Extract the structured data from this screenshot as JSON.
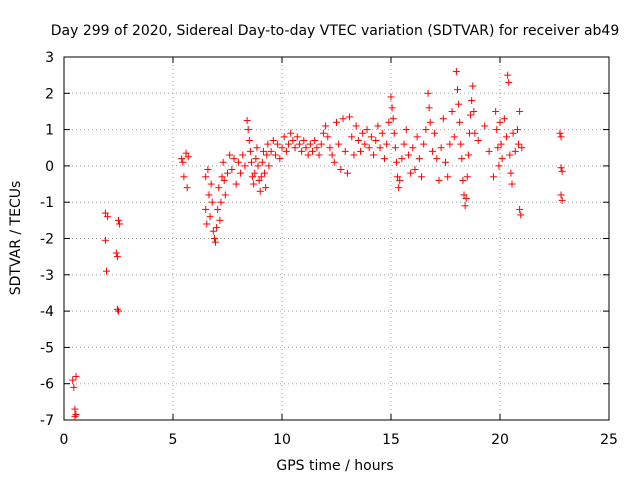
{
  "chart_data": {
    "type": "scatter",
    "title": "Day 299 of 2020, Sidereal Day-to-day VTEC variation (SDTVAR) for receiver ab49",
    "xlabel": "GPS time / hours",
    "ylabel": "SDTVAR / TECUs",
    "xlim": [
      0,
      25
    ],
    "ylim": [
      -7,
      3
    ],
    "x_ticks": [
      "0",
      "5",
      "10",
      "15",
      "20",
      "25"
    ],
    "y_ticks": [
      "-7",
      "-6",
      "-5",
      "-4",
      "-3",
      "-2",
      "-1",
      "0",
      "1",
      "2",
      "3"
    ],
    "grid": true,
    "marker": "+",
    "color": "#ff0000",
    "series": [
      {
        "name": "SDTVAR",
        "points": [
          [
            0.4,
            -5.9
          ],
          [
            0.45,
            -6.1
          ],
          [
            0.5,
            -6.7
          ],
          [
            0.5,
            -6.9
          ],
          [
            0.55,
            -5.8
          ],
          [
            0.55,
            -6.85
          ],
          [
            1.9,
            -1.3
          ],
          [
            1.9,
            -2.05
          ],
          [
            1.95,
            -2.9
          ],
          [
            2.0,
            -1.4
          ],
          [
            2.4,
            -2.4
          ],
          [
            2.45,
            -2.5
          ],
          [
            2.45,
            -3.95
          ],
          [
            2.5,
            -4.0
          ],
          [
            2.5,
            -1.5
          ],
          [
            2.55,
            -1.6
          ],
          [
            5.4,
            0.2
          ],
          [
            5.45,
            0.1
          ],
          [
            5.5,
            -0.3
          ],
          [
            5.6,
            0.35
          ],
          [
            5.65,
            -0.6
          ],
          [
            5.7,
            0.25
          ],
          [
            6.5,
            -0.3
          ],
          [
            6.5,
            -1.2
          ],
          [
            6.55,
            -1.6
          ],
          [
            6.6,
            -0.1
          ],
          [
            6.65,
            -0.8
          ],
          [
            6.7,
            -1.4
          ],
          [
            6.75,
            -0.5
          ],
          [
            6.8,
            -1.0
          ],
          [
            6.85,
            -1.8
          ],
          [
            6.9,
            -2.0
          ],
          [
            6.95,
            -2.1
          ],
          [
            7.0,
            -1.7
          ],
          [
            7.05,
            -1.2
          ],
          [
            7.1,
            -0.6
          ],
          [
            7.15,
            -1.5
          ],
          [
            7.2,
            -1.0
          ],
          [
            7.25,
            -0.3
          ],
          [
            7.3,
            0.1
          ],
          [
            7.35,
            -0.4
          ],
          [
            7.4,
            -0.8
          ],
          [
            7.5,
            -0.2
          ],
          [
            7.6,
            0.3
          ],
          [
            7.7,
            -0.1
          ],
          [
            7.8,
            0.2
          ],
          [
            7.9,
            -0.5
          ],
          [
            8.0,
            0.1
          ],
          [
            8.1,
            -0.2
          ],
          [
            8.2,
            0.3
          ],
          [
            8.3,
            0.0
          ],
          [
            8.4,
            1.25
          ],
          [
            8.45,
            1.0
          ],
          [
            8.5,
            0.7
          ],
          [
            8.55,
            0.4
          ],
          [
            8.6,
            0.1
          ],
          [
            8.65,
            -0.3
          ],
          [
            8.7,
            -0.5
          ],
          [
            8.75,
            -0.2
          ],
          [
            8.8,
            0.2
          ],
          [
            8.85,
            0.5
          ],
          [
            8.9,
            0.0
          ],
          [
            8.95,
            -0.4
          ],
          [
            9.0,
            -0.7
          ],
          [
            9.05,
            -0.3
          ],
          [
            9.1,
            0.1
          ],
          [
            9.15,
            0.4
          ],
          [
            9.2,
            -0.2
          ],
          [
            9.25,
            -0.6
          ],
          [
            9.3,
            0.3
          ],
          [
            9.35,
            0.6
          ],
          [
            9.4,
            0.0
          ],
          [
            9.5,
            0.4
          ],
          [
            9.6,
            0.7
          ],
          [
            9.7,
            0.3
          ],
          [
            9.8,
            0.6
          ],
          [
            9.9,
            0.2
          ],
          [
            10.0,
            0.5
          ],
          [
            10.1,
            0.8
          ],
          [
            10.2,
            0.4
          ],
          [
            10.3,
            0.6
          ],
          [
            10.4,
            0.9
          ],
          [
            10.5,
            0.7
          ],
          [
            10.6,
            0.5
          ],
          [
            10.7,
            0.8
          ],
          [
            10.8,
            0.6
          ],
          [
            10.9,
            0.4
          ],
          [
            11.0,
            0.7
          ],
          [
            11.1,
            0.5
          ],
          [
            11.2,
            0.3
          ],
          [
            11.3,
            0.6
          ],
          [
            11.4,
            0.4
          ],
          [
            11.5,
            0.7
          ],
          [
            11.6,
            0.5
          ],
          [
            11.7,
            0.3
          ],
          [
            11.8,
            0.6
          ],
          [
            11.9,
            0.9
          ],
          [
            12.0,
            1.1
          ],
          [
            12.1,
            0.8
          ],
          [
            12.2,
            0.5
          ],
          [
            12.3,
            0.3
          ],
          [
            12.4,
            0.1
          ],
          [
            12.5,
            1.2
          ],
          [
            12.6,
            0.6
          ],
          [
            12.7,
            -0.1
          ],
          [
            12.8,
            1.3
          ],
          [
            12.9,
            0.4
          ],
          [
            13.0,
            -0.2
          ],
          [
            13.1,
            1.35
          ],
          [
            13.2,
            0.8
          ],
          [
            13.3,
            0.3
          ],
          [
            13.4,
            1.1
          ],
          [
            13.5,
            0.7
          ],
          [
            13.6,
            0.4
          ],
          [
            13.7,
            0.9
          ],
          [
            13.8,
            0.6
          ],
          [
            13.9,
            1.0
          ],
          [
            14.0,
            0.5
          ],
          [
            14.1,
            0.8
          ],
          [
            14.2,
            0.3
          ],
          [
            14.3,
            0.7
          ],
          [
            14.4,
            1.1
          ],
          [
            14.5,
            0.5
          ],
          [
            14.6,
            0.9
          ],
          [
            14.7,
            0.2
          ],
          [
            14.8,
            0.6
          ],
          [
            14.9,
            1.2
          ],
          [
            15.0,
            1.9
          ],
          [
            15.05,
            1.6
          ],
          [
            15.1,
            1.3
          ],
          [
            15.15,
            0.9
          ],
          [
            15.2,
            0.5
          ],
          [
            15.25,
            0.1
          ],
          [
            15.3,
            -0.3
          ],
          [
            15.35,
            -0.6
          ],
          [
            15.4,
            -0.4
          ],
          [
            15.5,
            0.2
          ],
          [
            15.6,
            0.6
          ],
          [
            15.7,
            1.0
          ],
          [
            15.8,
            0.3
          ],
          [
            15.9,
            -0.2
          ],
          [
            16.0,
            0.5
          ],
          [
            16.1,
            -0.1
          ],
          [
            16.2,
            0.8
          ],
          [
            16.3,
            0.2
          ],
          [
            16.4,
            -0.3
          ],
          [
            16.5,
            0.6
          ],
          [
            16.6,
            1.0
          ],
          [
            16.7,
            2.0
          ],
          [
            16.75,
            1.6
          ],
          [
            16.8,
            1.2
          ],
          [
            16.9,
            0.4
          ],
          [
            17.0,
            0.9
          ],
          [
            17.1,
            0.2
          ],
          [
            17.2,
            -0.4
          ],
          [
            17.3,
            0.5
          ],
          [
            17.4,
            1.3
          ],
          [
            17.5,
            0.1
          ],
          [
            17.6,
            -0.3
          ],
          [
            17.7,
            0.6
          ],
          [
            17.8,
            1.5
          ],
          [
            17.9,
            0.8
          ],
          [
            18.0,
            2.6
          ],
          [
            18.05,
            2.1
          ],
          [
            18.1,
            1.7
          ],
          [
            18.15,
            1.2
          ],
          [
            18.2,
            0.6
          ],
          [
            18.25,
            0.2
          ],
          [
            18.3,
            -0.4
          ],
          [
            18.35,
            -0.8
          ],
          [
            18.4,
            -1.1
          ],
          [
            18.45,
            -0.9
          ],
          [
            18.5,
            -0.3
          ],
          [
            18.55,
            0.3
          ],
          [
            18.6,
            0.9
          ],
          [
            18.65,
            1.4
          ],
          [
            18.7,
            1.8
          ],
          [
            18.75,
            2.2
          ],
          [
            18.8,
            1.5
          ],
          [
            18.85,
            0.9
          ],
          [
            19.0,
            0.7
          ],
          [
            19.3,
            1.1
          ],
          [
            19.5,
            0.4
          ],
          [
            19.7,
            -0.3
          ],
          [
            19.8,
            1.5
          ],
          [
            19.85,
            1.0
          ],
          [
            19.9,
            0.5
          ],
          [
            19.95,
            0.0
          ],
          [
            20.0,
            1.2
          ],
          [
            20.05,
            0.6
          ],
          [
            20.1,
            0.2
          ],
          [
            20.2,
            1.3
          ],
          [
            20.3,
            0.8
          ],
          [
            20.35,
            2.5
          ],
          [
            20.4,
            2.3
          ],
          [
            20.45,
            0.3
          ],
          [
            20.5,
            -0.2
          ],
          [
            20.55,
            -0.5
          ],
          [
            20.6,
            0.9
          ],
          [
            20.7,
            0.4
          ],
          [
            20.8,
            1.0
          ],
          [
            20.85,
            0.6
          ],
          [
            20.9,
            1.5
          ],
          [
            20.9,
            -1.2
          ],
          [
            20.95,
            -1.35
          ],
          [
            21.0,
            0.5
          ],
          [
            22.75,
            0.9
          ],
          [
            22.8,
            0.8
          ],
          [
            22.8,
            -0.05
          ],
          [
            22.85,
            -0.15
          ],
          [
            22.8,
            -0.8
          ],
          [
            22.85,
            -0.95
          ]
        ]
      }
    ]
  }
}
